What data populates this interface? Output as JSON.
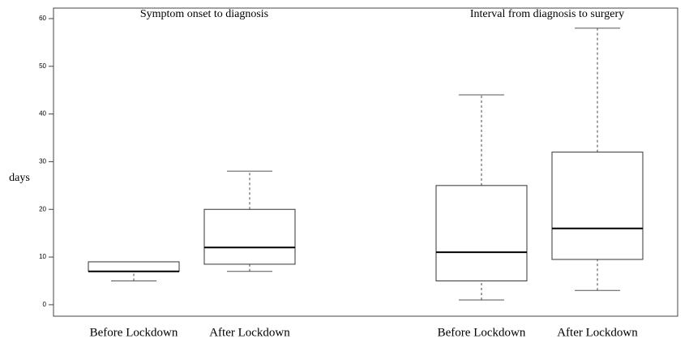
{
  "chart_data": {
    "type": "box",
    "ylabel": "days",
    "ylim": [
      -2.4,
      62.2
    ],
    "yticks": [
      0,
      10,
      20,
      30,
      40,
      50,
      60
    ],
    "groups": [
      {
        "title": "Symptom onset to diagnosis",
        "categories": [
          "Before Lockdown",
          "After Lockdown"
        ],
        "boxes": [
          {
            "min": 5,
            "q1": 7,
            "median": 7,
            "q3": 9,
            "max": 9
          },
          {
            "min": 7,
            "q1": 8.5,
            "median": 12,
            "q3": 20,
            "max": 28
          }
        ]
      },
      {
        "title": "Interval from diagnosis to surgery",
        "categories": [
          "Before Lockdown",
          "After Lockdown"
        ],
        "boxes": [
          {
            "min": 1,
            "q1": 5,
            "median": 11,
            "q3": 25,
            "max": 44
          },
          {
            "min": 3,
            "q1": 9.5,
            "median": 16,
            "q3": 32,
            "max": 58
          }
        ]
      }
    ]
  }
}
